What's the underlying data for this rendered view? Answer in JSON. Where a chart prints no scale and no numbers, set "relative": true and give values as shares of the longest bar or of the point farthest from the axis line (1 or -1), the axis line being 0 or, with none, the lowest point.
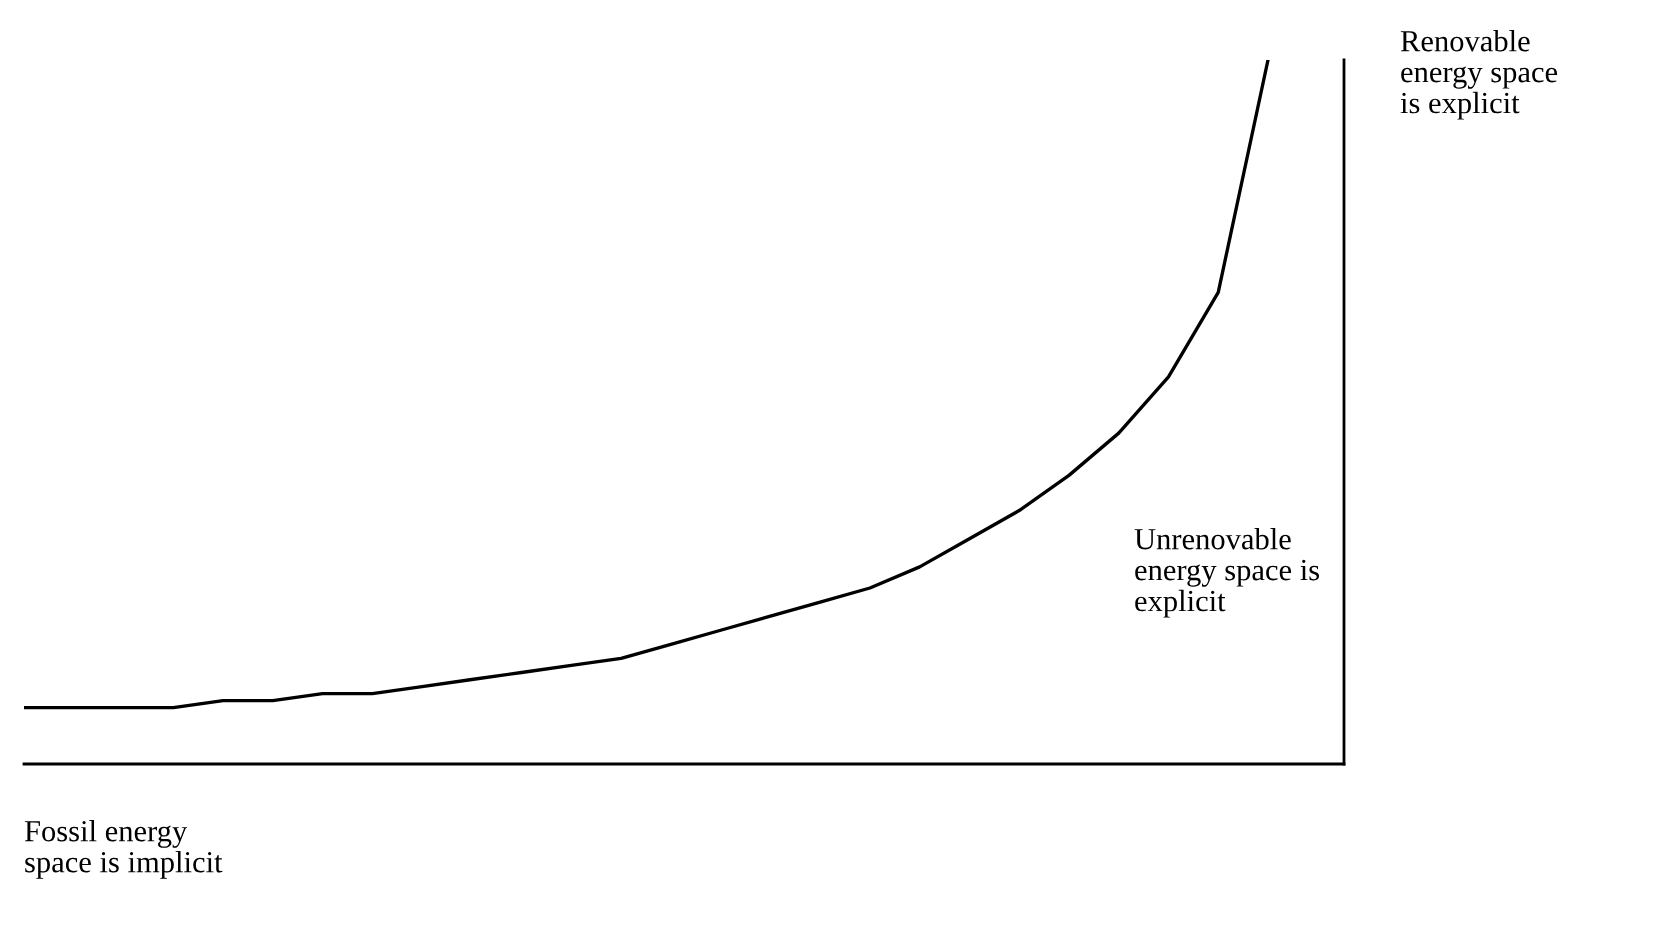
{
  "chart_data": {
    "type": "line",
    "relative": true,
    "color": "#000000",
    "categories": [
      null,
      null,
      null,
      null,
      null,
      null,
      null,
      null,
      null,
      null,
      null,
      null,
      null,
      null,
      null,
      null,
      null,
      null,
      null,
      null,
      null,
      null,
      null,
      null,
      null,
      null
    ],
    "values": [
      0.08,
      0.08,
      0.08,
      0.08,
      0.09,
      0.09,
      0.1,
      0.1,
      0.11,
      0.12,
      0.13,
      0.14,
      0.15,
      0.17,
      0.19,
      0.21,
      0.23,
      0.25,
      0.28,
      0.32,
      0.36,
      0.41,
      0.47,
      0.55,
      0.67,
      1
    ],
    "annotations": [
      "Renovable\nenergy space\nis explicit",
      "Unrenovable\nenergy space is\nexplicit",
      "Fossil energy\nspace is implicit"
    ]
  }
}
